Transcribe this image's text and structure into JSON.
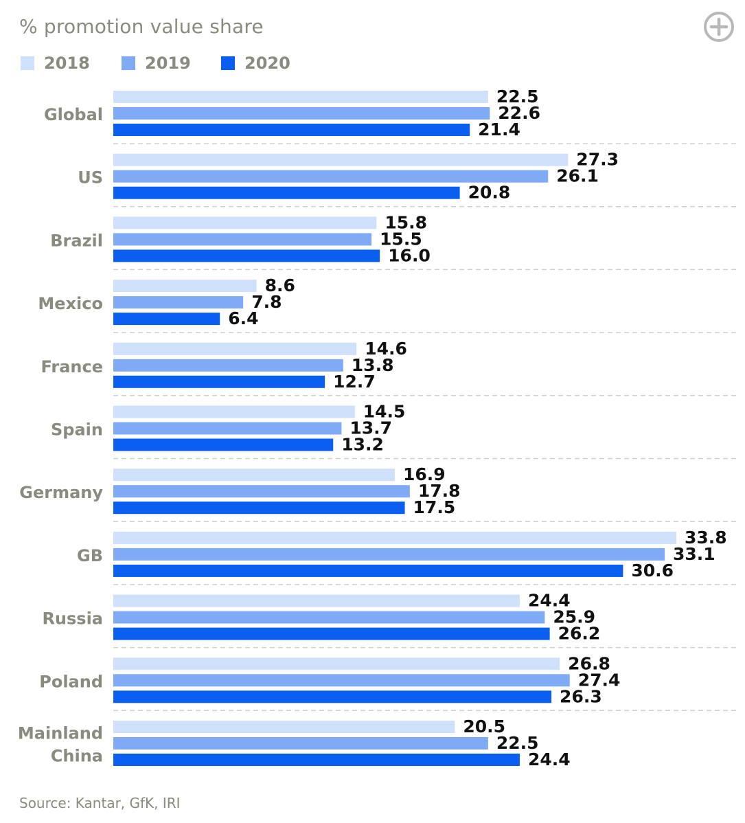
{
  "header": {
    "title": "% promotion value share"
  },
  "footer": {
    "source": "Source: Kantar, GfK, IRI"
  },
  "colors": {
    "series_2018": "#cfe0fb",
    "series_2019": "#7faaf5",
    "series_2020": "#0a5ff0",
    "label_text": "#8a8a7e",
    "value_text": "#111111",
    "separator": "#d0d0d0",
    "icon": "#b8b8b8"
  },
  "icons": {
    "expand": "plus-circle-icon"
  },
  "chart_data": {
    "type": "bar",
    "orientation": "horizontal",
    "title": "% promotion value share",
    "legend_position": "top-left",
    "grid": false,
    "categories": [
      "Global",
      "US",
      "Brazil",
      "Mexico",
      "France",
      "Spain",
      "Germany",
      "GB",
      "Russia",
      "Poland",
      "Mainland China"
    ],
    "category_lines": [
      [
        "Global"
      ],
      [
        "US"
      ],
      [
        "Brazil"
      ],
      [
        "Mexico"
      ],
      [
        "France"
      ],
      [
        "Spain"
      ],
      [
        "Germany"
      ],
      [
        "GB"
      ],
      [
        "Russia"
      ],
      [
        "Poland"
      ],
      [
        "Mainland",
        "China"
      ]
    ],
    "series": [
      {
        "name": "2018",
        "values": [
          22.5,
          27.3,
          15.8,
          8.6,
          14.6,
          14.5,
          16.9,
          33.8,
          24.4,
          26.8,
          20.5
        ],
        "labels": [
          "22.5",
          "27.3",
          "15.8",
          "8.6",
          "14.6",
          "14.5",
          "16.9",
          "33.8",
          "24.4",
          "26.8",
          "20.5"
        ]
      },
      {
        "name": "2019",
        "values": [
          22.6,
          26.1,
          15.5,
          7.8,
          13.8,
          13.7,
          17.8,
          33.1,
          25.9,
          27.4,
          22.5
        ],
        "labels": [
          "22.6",
          "26.1",
          "15.5",
          "7.8",
          "13.8",
          "13.7",
          "17.8",
          "33.1",
          "25.9",
          "27.4",
          "22.5"
        ]
      },
      {
        "name": "2020",
        "values": [
          21.4,
          20.8,
          16.0,
          6.4,
          12.7,
          13.2,
          17.5,
          30.6,
          26.2,
          26.3,
          24.4
        ],
        "labels": [
          "21.4",
          "20.8",
          "16.0",
          "6.4",
          "12.7",
          "13.2",
          "17.5",
          "30.6",
          "26.2",
          "26.3",
          "24.4"
        ]
      }
    ],
    "xlim": [
      0,
      33.8
    ]
  }
}
